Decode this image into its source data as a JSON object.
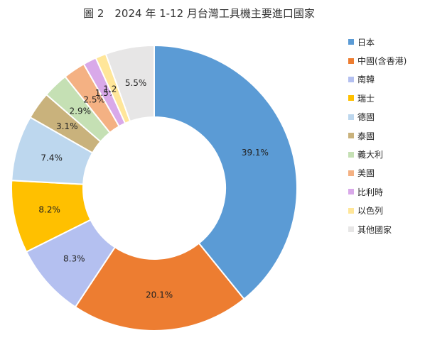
{
  "chart_data": {
    "type": "pie",
    "title": "圖 2　2024 年 1-12 月台灣工具機主要進口國家",
    "categories": [
      "日本",
      "中國(含香港)",
      "南韓",
      "瑞士",
      "德國",
      "泰國",
      "義大利",
      "美國",
      "比利時",
      "以色列",
      "其他國家"
    ],
    "values": [
      39.1,
      20.1,
      8.3,
      8.2,
      7.4,
      3.1,
      2.9,
      2.5,
      1.5,
      1.2,
      5.5
    ],
    "value_labels": [
      "39.1%",
      "20.1%",
      "8.3%",
      "8.2%",
      "7.4%",
      "3.1%",
      "2.9%",
      "2.5%",
      "1.5%",
      "1.2%",
      "5.5%"
    ],
    "colors": [
      "#5B9BD5",
      "#ED7D31",
      "#B4C0F0",
      "#FFC000",
      "#BDD7EE",
      "#C9B27C",
      "#C5E0B4",
      "#F4B183",
      "#D9A9E9",
      "#FFE699",
      "#E7E6E6"
    ],
    "legend_position": "right",
    "donut": true
  }
}
